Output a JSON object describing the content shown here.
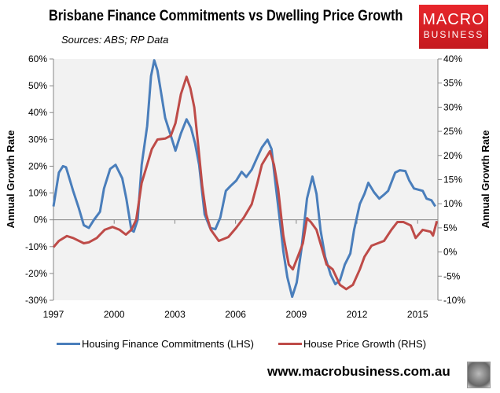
{
  "header": {
    "title": "Brisbane Finance Commitments vs Dwelling Price Growth",
    "subtitle": "Sources: ABS; RP Data"
  },
  "logo": {
    "line1": "MACRO",
    "line2": "BUSINESS"
  },
  "footer": {
    "url": "www.macrobusiness.com.au"
  },
  "colors": {
    "blue": "#4a7ebb",
    "red": "#be4b48",
    "plot_bg": "#f2f2f2"
  },
  "chart_data": {
    "type": "line",
    "title": "Brisbane Finance Commitments vs Dwelling Price Growth",
    "ylabel": "Annual Growth Rate",
    "y2label": "Annual Growth Rate",
    "xlim": [
      1997,
      2016
    ],
    "ylim": [
      -30,
      60
    ],
    "y2lim": [
      -10,
      40
    ],
    "xticks": [
      1997,
      2000,
      2003,
      2006,
      2009,
      2012,
      2015
    ],
    "xtick_labels": [
      "1997",
      "2000",
      "2003",
      "2006",
      "2009",
      "2012",
      "2015"
    ],
    "yticks": [
      -30,
      -20,
      -10,
      0,
      10,
      20,
      30,
      40,
      50,
      60
    ],
    "ytick_labels": [
      "-30%",
      "-20%",
      "-10%",
      "0%",
      "10%",
      "20%",
      "30%",
      "40%",
      "50%",
      "60%"
    ],
    "y2ticks": [
      -10,
      -5,
      0,
      5,
      10,
      15,
      20,
      25,
      30,
      35,
      40
    ],
    "y2tick_labels": [
      "-10%",
      "-5%",
      "0%",
      "5%",
      "10%",
      "15%",
      "20%",
      "25%",
      "30%",
      "35%",
      "40%"
    ],
    "legend_position": "bottom",
    "series": [
      {
        "name": "Housing Finance Commitments (LHS)",
        "axis": "left",
        "color": "#4a7ebb",
        "x": [
          1997,
          1997.27,
          1997.47,
          1997.62,
          1997.74,
          1997.97,
          1998.25,
          1998.5,
          1998.75,
          1999.0,
          1999.3,
          1999.5,
          1999.8,
          2000.07,
          2000.4,
          2000.6,
          2000.85,
          2000.97,
          2001.16,
          2001.36,
          2001.63,
          2001.82,
          2001.98,
          2002.14,
          2002.33,
          2002.52,
          2002.8,
          2003.03,
          2003.3,
          2003.58,
          2003.8,
          2004.0,
          2004.2,
          2004.47,
          2004.74,
          2005.0,
          2005.25,
          2005.52,
          2005.75,
          2006.03,
          2006.3,
          2006.53,
          2006.8,
          2007.08,
          2007.3,
          2007.58,
          2007.78,
          2007.97,
          2008.17,
          2008.36,
          2008.56,
          2008.8,
          2009.02,
          2009.26,
          2009.53,
          2009.8,
          2010.0,
          2010.2,
          2010.43,
          2010.7,
          2010.93,
          2011.16,
          2011.4,
          2011.67,
          2011.86,
          2012.14,
          2012.37,
          2012.56,
          2012.84,
          2013.1,
          2013.34,
          2013.54,
          2013.89,
          2014.12,
          2014.39,
          2014.59,
          2014.82,
          2015.25,
          2015.44,
          2015.68,
          2015.87
        ],
        "y": [
          5,
          17.6,
          20,
          19.6,
          16.7,
          10.8,
          4.4,
          -2,
          -3,
          0,
          3,
          11.7,
          19,
          20.5,
          15.5,
          7.9,
          -3.8,
          -4.4,
          0,
          20.5,
          35,
          53.6,
          59.5,
          55.7,
          46.9,
          38,
          31.4,
          25.8,
          32.2,
          37.5,
          34.3,
          28.4,
          20.5,
          2,
          -3,
          -3.5,
          0.9,
          10.8,
          12.6,
          14.6,
          17.9,
          16,
          18.7,
          23.4,
          27,
          29.9,
          26.4,
          13.8,
          0.9,
          -11.7,
          -21.4,
          -28.7,
          -23.4,
          -10.8,
          7.9,
          16.1,
          9.7,
          -3.8,
          -13.8,
          -20.5,
          -24,
          -22.6,
          -16.7,
          -12.6,
          -3.8,
          5.9,
          9.7,
          13.8,
          10.3,
          7.9,
          9.4,
          10.8,
          17.6,
          18.5,
          18.2,
          14.6,
          11.7,
          10.8,
          7.9,
          7.3,
          5
        ]
      },
      {
        "name": "House Price Growth (RHS)",
        "axis": "right",
        "color": "#be4b48",
        "x": [
          1997,
          1997.27,
          1997.66,
          1997.97,
          1998.5,
          1998.75,
          1999.14,
          1999.53,
          1999.92,
          2000.27,
          2000.58,
          2000.85,
          2001.09,
          2001.36,
          2001.63,
          2001.86,
          2002.14,
          2002.52,
          2002.8,
          2003.03,
          2003.3,
          2003.58,
          2003.77,
          2003.96,
          2004.16,
          2004.35,
          2004.55,
          2004.78,
          2005.17,
          2005.64,
          2006.03,
          2006.42,
          2006.8,
          2007.08,
          2007.3,
          2007.7,
          2007.9,
          2008.1,
          2008.36,
          2008.63,
          2008.83,
          2009.14,
          2009.33,
          2009.53,
          2009.72,
          2010.0,
          2010.23,
          2010.5,
          2010.8,
          2011.16,
          2011.47,
          2011.8,
          2012.14,
          2012.37,
          2012.72,
          2013.03,
          2013.34,
          2013.7,
          2014.0,
          2014.3,
          2014.66,
          2014.9,
          2015.25,
          2015.64,
          2015.76,
          2015.95
        ],
        "y": [
          1.0,
          2.3,
          3.3,
          2.9,
          1.8,
          2.0,
          2.9,
          4.6,
          5.2,
          4.6,
          3.6,
          4.6,
          6.7,
          14.3,
          18.1,
          21.3,
          23.3,
          23.5,
          24.1,
          26.7,
          32.7,
          36.3,
          33.9,
          30,
          21.8,
          13.7,
          7.8,
          4.6,
          2.3,
          3.1,
          5.0,
          7.2,
          9.9,
          14.3,
          18.1,
          20.9,
          18.1,
          13.2,
          3.4,
          -2.6,
          -3.6,
          -0.3,
          1.8,
          7.0,
          6.2,
          4.6,
          1.3,
          -2.6,
          -3.6,
          -6.8,
          -7.7,
          -6.8,
          -3.6,
          -1.0,
          1.3,
          1.8,
          2.3,
          4.6,
          6.2,
          6.2,
          5.5,
          2.9,
          4.6,
          4.2,
          3.4,
          6.4
        ]
      }
    ]
  }
}
